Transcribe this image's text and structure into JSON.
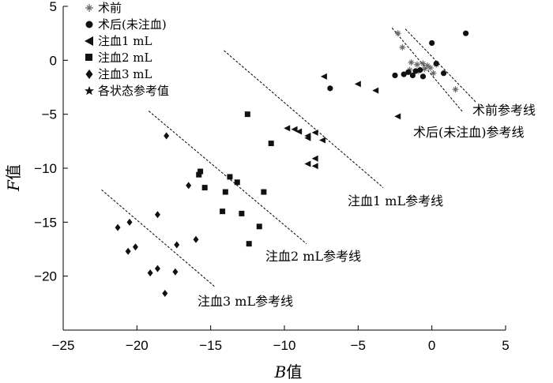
{
  "chart_data": {
    "type": "scatter",
    "xlabel": "B值",
    "ylabel": "F值",
    "xlim": [
      -25,
      5
    ],
    "ylim": [
      -25,
      5
    ],
    "xticks": [
      -25,
      -20,
      -15,
      -10,
      -5,
      0,
      5
    ],
    "yticks": [
      5,
      0,
      -5,
      -10,
      -15,
      -20
    ],
    "grid": false,
    "legend_position": "top-left",
    "legend": [
      {
        "label": "术前",
        "marker": "plus-star"
      },
      {
        "label": "术后(未注血)",
        "marker": "circle"
      },
      {
        "label": "注血1 mL",
        "marker": "triangle-left"
      },
      {
        "label": "注血2 mL",
        "marker": "square"
      },
      {
        "label": "注血3 mL",
        "marker": "diamond"
      },
      {
        "label": "各状态参考值",
        "marker": "star"
      }
    ],
    "series": [
      {
        "name": "术前",
        "marker": "plus-star",
        "points": [
          [
            -2.3,
            2.5
          ],
          [
            -2.0,
            1.2
          ],
          [
            -1.4,
            -0.2
          ],
          [
            -1.0,
            -0.4
          ],
          [
            -0.6,
            -0.3
          ],
          [
            -0.5,
            -0.8
          ],
          [
            -0.3,
            -0.5
          ],
          [
            -0.1,
            -0.7
          ],
          [
            0.1,
            -1.2
          ],
          [
            0.3,
            -0.4
          ],
          [
            1.6,
            -2.7
          ],
          [
            -1.5,
            -0.9
          ],
          [
            -0.9,
            -1.0
          ]
        ]
      },
      {
        "name": "术后(未注血)",
        "marker": "circle",
        "points": [
          [
            2.3,
            2.5
          ],
          [
            0.0,
            1.6
          ],
          [
            -2.5,
            -1.4
          ],
          [
            -1.9,
            -1.3
          ],
          [
            -1.6,
            -1.1
          ],
          [
            -1.3,
            -1.4
          ],
          [
            -1.1,
            -1.0
          ],
          [
            -0.8,
            -0.9
          ],
          [
            0.3,
            -0.3
          ],
          [
            0.8,
            -1.2
          ],
          [
            -6.9,
            -2.6
          ],
          [
            -0.6,
            -1.5
          ]
        ]
      },
      {
        "name": "注血1 mL",
        "marker": "triangle-left",
        "points": [
          [
            -7.3,
            -1.5
          ],
          [
            -5.0,
            -2.2
          ],
          [
            -3.8,
            -2.8
          ],
          [
            -2.3,
            -5.2
          ],
          [
            -9.8,
            -6.3
          ],
          [
            -9.3,
            -6.4
          ],
          [
            -9.0,
            -6.6
          ],
          [
            -8.4,
            -7.0
          ],
          [
            -8.4,
            -7.2
          ],
          [
            -7.9,
            -6.7
          ],
          [
            -7.4,
            -7.4
          ],
          [
            -8.4,
            -9.6
          ],
          [
            -7.9,
            -9.1
          ],
          [
            -7.9,
            -9.8
          ]
        ]
      },
      {
        "name": "注血2 mL",
        "marker": "square",
        "points": [
          [
            -12.5,
            -5.0
          ],
          [
            -10.9,
            -7.7
          ],
          [
            -15.7,
            -10.3
          ],
          [
            -15.8,
            -10.6
          ],
          [
            -15.4,
            -11.8
          ],
          [
            -13.7,
            -10.8
          ],
          [
            -13.2,
            -11.3
          ],
          [
            -14.0,
            -12.2
          ],
          [
            -12.9,
            -14.2
          ],
          [
            -11.4,
            -12.2
          ],
          [
            -14.2,
            -14.0
          ],
          [
            -11.7,
            -15.4
          ],
          [
            -12.4,
            -17.0
          ]
        ]
      },
      {
        "name": "注血3 mL",
        "marker": "diamond",
        "points": [
          [
            -18.0,
            -7.0
          ],
          [
            -16.5,
            -11.6
          ],
          [
            -16.0,
            -16.6
          ],
          [
            -18.6,
            -14.3
          ],
          [
            -21.3,
            -15.5
          ],
          [
            -20.5,
            -15.0
          ],
          [
            -17.3,
            -17.1
          ],
          [
            -20.6,
            -17.7
          ],
          [
            -20.1,
            -17.3
          ],
          [
            -18.6,
            -19.3
          ],
          [
            -19.1,
            -19.7
          ],
          [
            -17.4,
            -19.6
          ],
          [
            -18.1,
            -21.6
          ]
        ]
      }
    ],
    "reference_lines": [
      {
        "label": "术前参考线",
        "from": [
          -1.8,
          2.9
        ],
        "to": [
          3.0,
          -3.9
        ]
      },
      {
        "label": "术后(未注血)参考线",
        "from": [
          -2.7,
          3.0
        ],
        "to": [
          2.1,
          -4.8
        ]
      },
      {
        "label": "注血1 mL参考线",
        "from": [
          -14.1,
          0.9
        ],
        "to": [
          -3.3,
          -11.8
        ]
      },
      {
        "label": "注血2 mL参考线",
        "from": [
          -19.2,
          -4.7
        ],
        "to": [
          -8.5,
          -17.0
        ]
      },
      {
        "label": "注血3 mL参考线",
        "from": [
          -22.4,
          -12.0
        ],
        "to": [
          -14.7,
          -21.0
        ]
      }
    ],
    "reference_labels": [
      "术前参考线",
      "术后(未注血)参考线",
      "注血1 mL参考线",
      "注血2 mL参考线",
      "注血3 mL参考线"
    ]
  }
}
